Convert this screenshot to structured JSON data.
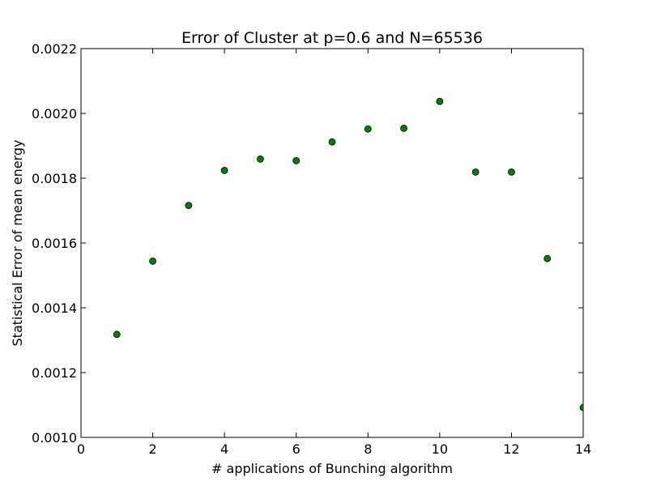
{
  "chart_data": {
    "type": "scatter",
    "title": "Error of Cluster at p=0.6 and N=65536",
    "xlabel": "# applications of Bunching algorithm",
    "ylabel": "Statistical Error of mean energy",
    "xlim": [
      0,
      14
    ],
    "ylim": [
      0.001,
      0.0022
    ],
    "x_ticks": [
      0,
      2,
      4,
      6,
      8,
      10,
      12,
      14
    ],
    "x_tick_labels": [
      "0",
      "2",
      "4",
      "6",
      "8",
      "10",
      "12",
      "14"
    ],
    "y_ticks": [
      0.001,
      0.0012,
      0.0014,
      0.0016,
      0.0018,
      0.002,
      0.0022
    ],
    "y_tick_labels": [
      "0.0010",
      "0.0012",
      "0.0014",
      "0.0016",
      "0.0018",
      "0.0020",
      "0.0022"
    ],
    "grid": false,
    "series": [
      {
        "color": "#008000",
        "marker": "circle",
        "x": [
          1,
          2,
          3,
          4,
          5,
          6,
          7,
          8,
          9,
          10,
          11,
          12,
          13,
          14
        ],
        "y": [
          0.001318,
          0.001544,
          0.001716,
          0.001824,
          0.001859,
          0.001854,
          0.001912,
          0.001952,
          0.001954,
          0.002037,
          0.001819,
          0.001819,
          0.001552,
          0.001092
        ]
      }
    ]
  }
}
